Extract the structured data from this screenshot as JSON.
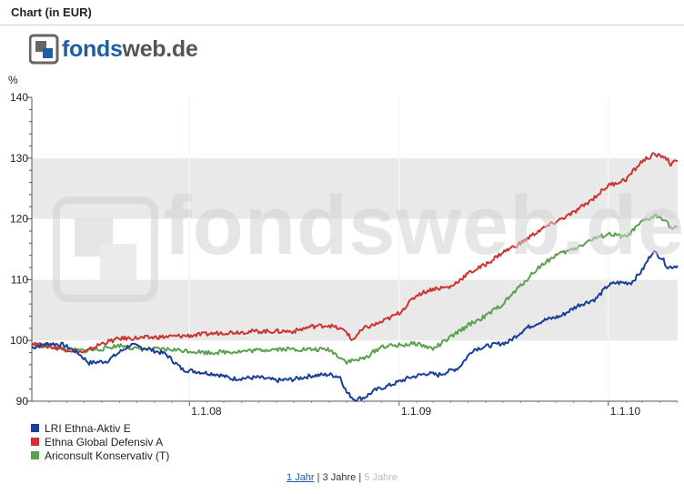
{
  "header": {
    "title": "Chart (in EUR)"
  },
  "logo": {
    "part1": "fonds",
    "part2": "web.de"
  },
  "watermark": {
    "text": "fondsweb.de"
  },
  "chart_data": {
    "type": "line",
    "title": "",
    "xlabel": "",
    "ylabel": "%",
    "ylim": [
      90,
      140
    ],
    "yticks": [
      90,
      100,
      110,
      120,
      130,
      140
    ],
    "xlim": [
      "2007-04-01",
      "2010-05-02"
    ],
    "xticks": [
      {
        "date": "2008-01-01",
        "label": "1.1.08"
      },
      {
        "date": "2009-01-01",
        "label": "1.1.09"
      },
      {
        "date": "2010-01-01",
        "label": "1.1.10"
      }
    ],
    "grid": "horizontal bands",
    "legend_position": "bottom-left",
    "series": [
      {
        "name": "LRI Ethna-Aktiv E",
        "color": "#1a3f99",
        "points": [
          [
            "2007-04-01",
            98.8
          ],
          [
            "2007-05-01",
            99.5
          ],
          [
            "2007-05-25",
            99.3
          ],
          [
            "2007-06-20",
            98.0
          ],
          [
            "2007-07-10",
            96.3
          ],
          [
            "2007-08-10",
            96.6
          ],
          [
            "2007-09-20",
            99.3
          ],
          [
            "2007-10-20",
            98.6
          ],
          [
            "2007-11-20",
            97.8
          ],
          [
            "2007-12-20",
            95.2
          ],
          [
            "2008-01-20",
            94.8
          ],
          [
            "2008-02-20",
            94.4
          ],
          [
            "2008-03-15",
            93.7
          ],
          [
            "2008-05-01",
            93.9
          ],
          [
            "2008-06-01",
            93.4
          ],
          [
            "2008-07-01",
            93.6
          ],
          [
            "2008-08-01",
            94.2
          ],
          [
            "2008-09-01",
            94.4
          ],
          [
            "2008-09-20",
            94.0
          ],
          [
            "2008-10-01",
            91.5
          ],
          [
            "2008-10-15",
            90.3
          ],
          [
            "2008-11-01",
            90.6
          ],
          [
            "2008-11-20",
            91.8
          ],
          [
            "2008-12-15",
            92.6
          ],
          [
            "2009-01-20",
            93.9
          ],
          [
            "2009-02-20",
            94.6
          ],
          [
            "2009-03-10",
            94.3
          ],
          [
            "2009-04-15",
            95.5
          ],
          [
            "2009-05-10",
            98.5
          ],
          [
            "2009-06-10",
            99.2
          ],
          [
            "2009-07-10",
            99.7
          ],
          [
            "2009-08-10",
            102.0
          ],
          [
            "2009-09-10",
            103.3
          ],
          [
            "2009-10-10",
            104.0
          ],
          [
            "2009-11-10",
            105.8
          ],
          [
            "2009-12-10",
            106.8
          ],
          [
            "2009-12-31",
            109.0
          ],
          [
            "2010-01-15",
            109.5
          ],
          [
            "2010-02-10",
            109.5
          ],
          [
            "2010-03-01",
            111.5
          ],
          [
            "2010-03-20",
            114.7
          ],
          [
            "2010-04-05",
            113.5
          ],
          [
            "2010-04-15",
            112.0
          ],
          [
            "2010-05-02",
            112.3
          ]
        ]
      },
      {
        "name": "Ethna Global Defensiv A",
        "color": "#cc3333",
        "points": [
          [
            "2007-04-01",
            99.5
          ],
          [
            "2007-05-01",
            99.0
          ],
          [
            "2007-06-01",
            98.5
          ],
          [
            "2007-07-01",
            98.0
          ],
          [
            "2007-08-01",
            99.5
          ],
          [
            "2007-09-01",
            100.3
          ],
          [
            "2007-11-01",
            100.5
          ],
          [
            "2008-01-01",
            100.8
          ],
          [
            "2008-03-01",
            101.3
          ],
          [
            "2008-05-01",
            101.5
          ],
          [
            "2008-07-01",
            101.5
          ],
          [
            "2008-08-01",
            102.3
          ],
          [
            "2008-09-01",
            102.5
          ],
          [
            "2008-10-01",
            101.5
          ],
          [
            "2008-10-10",
            100.0
          ],
          [
            "2008-11-01",
            102.0
          ],
          [
            "2008-12-01",
            103.0
          ],
          [
            "2009-01-01",
            104.5
          ],
          [
            "2009-02-01",
            107.5
          ],
          [
            "2009-03-01",
            108.5
          ],
          [
            "2009-04-01",
            108.8
          ],
          [
            "2009-05-01",
            111.0
          ],
          [
            "2009-06-01",
            112.5
          ],
          [
            "2009-07-01",
            114.5
          ],
          [
            "2009-08-01",
            116.0
          ],
          [
            "2009-09-01",
            118.0
          ],
          [
            "2009-10-01",
            119.5
          ],
          [
            "2009-11-01",
            121.0
          ],
          [
            "2009-12-01",
            123.0
          ],
          [
            "2010-01-01",
            125.5
          ],
          [
            "2010-02-01",
            126.5
          ],
          [
            "2010-03-01",
            129.5
          ],
          [
            "2010-03-20",
            130.5
          ],
          [
            "2010-04-10",
            130.3
          ],
          [
            "2010-04-20",
            129.0
          ],
          [
            "2010-05-02",
            129.5
          ]
        ]
      },
      {
        "name": "Ariconsult Konservativ (T)",
        "color": "#5aa04f",
        "points": [
          [
            "2007-04-01",
            99.5
          ],
          [
            "2007-05-01",
            99.0
          ],
          [
            "2007-06-01",
            98.5
          ],
          [
            "2007-07-01",
            98.3
          ],
          [
            "2007-08-01",
            98.6
          ],
          [
            "2007-09-01",
            99.2
          ],
          [
            "2007-10-01",
            98.6
          ],
          [
            "2007-12-01",
            98.5
          ],
          [
            "2008-02-01",
            98.0
          ],
          [
            "2008-04-01",
            98.2
          ],
          [
            "2008-06-01",
            98.6
          ],
          [
            "2008-08-01",
            98.5
          ],
          [
            "2008-09-01",
            98.5
          ],
          [
            "2008-10-01",
            96.5
          ],
          [
            "2008-11-01",
            97.0
          ],
          [
            "2008-12-01",
            99.0
          ],
          [
            "2009-01-01",
            99.2
          ],
          [
            "2009-02-01",
            99.5
          ],
          [
            "2009-03-01",
            98.6
          ],
          [
            "2009-04-01",
            100.5
          ],
          [
            "2009-05-01",
            102.5
          ],
          [
            "2009-06-01",
            104.0
          ],
          [
            "2009-07-01",
            106.0
          ],
          [
            "2009-08-01",
            109.0
          ],
          [
            "2009-09-01",
            112.0
          ],
          [
            "2009-10-01",
            114.0
          ],
          [
            "2009-11-01",
            115.0
          ],
          [
            "2009-12-01",
            116.5
          ],
          [
            "2010-01-01",
            117.5
          ],
          [
            "2010-02-01",
            117.0
          ],
          [
            "2010-03-01",
            119.5
          ],
          [
            "2010-03-25",
            120.5
          ],
          [
            "2010-04-10",
            120.0
          ],
          [
            "2010-04-20",
            118.5
          ],
          [
            "2010-05-02",
            118.5
          ]
        ]
      }
    ]
  },
  "range_nav": {
    "active": "1 Jahr",
    "sep1": " | ",
    "mid": "3 Jahre",
    "sep2": " | ",
    "disabled": "5 Jahre"
  }
}
